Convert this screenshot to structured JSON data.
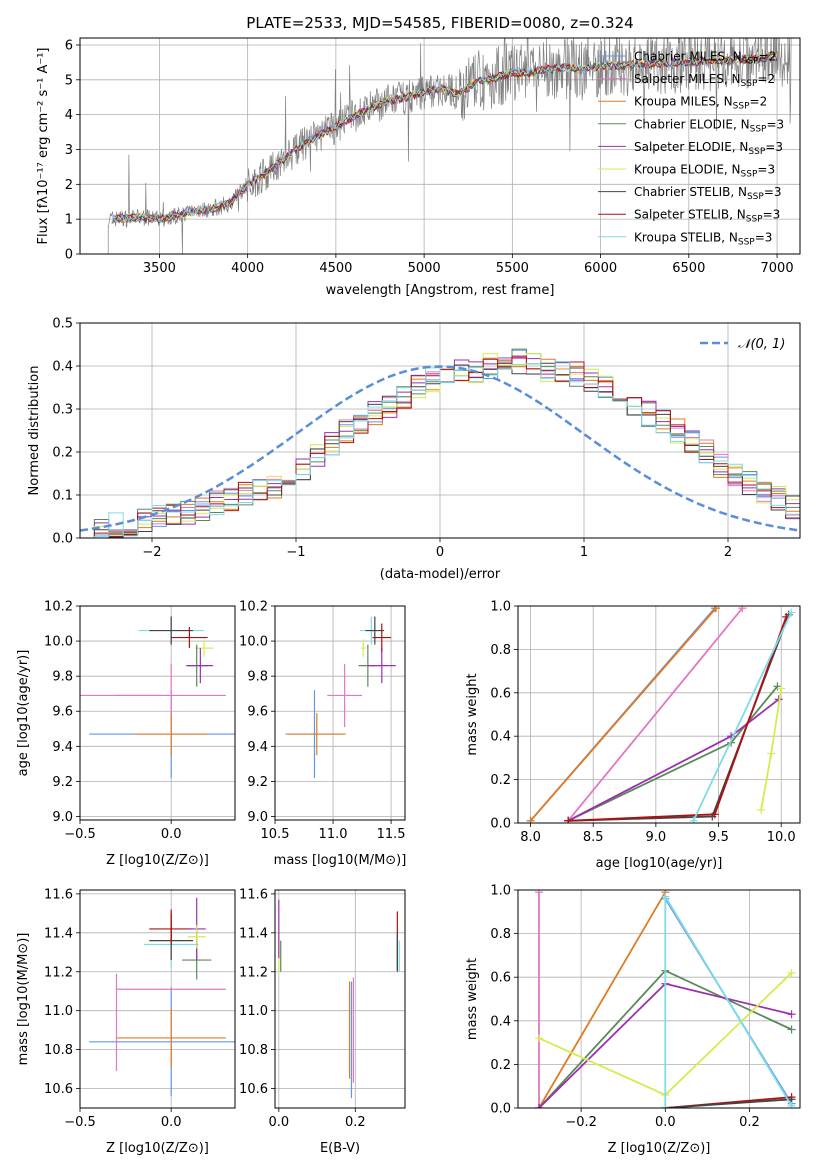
{
  "title": "PLATE=2533, MJD=54585, FIBERID=0080, z=0.324",
  "colors": {
    "chabrier_miles": "#6495ed",
    "salpeter_miles": "#e377c2",
    "kroupa_miles": "#e07b20",
    "chabrier_elodie": "#5a8a5a",
    "salpeter_elodie": "#9b30b0",
    "kroupa_elodie": "#d4ec50",
    "chabrier_stelib": "#444444",
    "salpeter_stelib": "#b01010",
    "kroupa_stelib": "#7fdbe8",
    "data": "#808080",
    "normal": "#5b8ed6",
    "grid": "#b0b0b0"
  },
  "legend_spectrum": [
    "Chabrier MILES, N",
    "Salpeter MILES, N",
    "Kroupa MILES, N",
    "Chabrier ELODIE, N",
    "Salpeter ELODIE, N",
    "Kroupa ELODIE, N",
    "Chabrier STELIB, N",
    "Salpeter STELIB, N",
    "Kroupa STELIB, N"
  ],
  "legend_nssp": [
    "2",
    "2",
    "2",
    "3",
    "3",
    "3",
    "3",
    "3",
    "3"
  ],
  "legend_sub": "SSP",
  "legend_eq": "=",
  "legend_normal": "𝒩(0, 1)",
  "chart_data": [
    {
      "id": "spectrum",
      "type": "line",
      "title": "PLATE=2533, MJD=54585, FIBERID=0080, z=0.324",
      "xlabel": "wavelength [Angstrom, rest frame]",
      "ylabel": "Flux [f_λ 10^-17 erg cm^-2 s^-1 A^-1]",
      "xlim": [
        3050,
        7130
      ],
      "ylim": [
        0,
        6.2
      ],
      "xticks": [
        3500,
        4000,
        4500,
        5000,
        5500,
        6000,
        6500,
        7000
      ],
      "yticks": [
        0,
        1,
        2,
        3,
        4,
        5,
        6
      ],
      "continuum": [
        [
          3210,
          1.0
        ],
        [
          3400,
          1.05
        ],
        [
          3500,
          1.0
        ],
        [
          3600,
          1.1
        ],
        [
          3700,
          1.25
        ],
        [
          3800,
          1.3
        ],
        [
          3900,
          1.45
        ],
        [
          4000,
          2.0
        ],
        [
          4100,
          2.3
        ],
        [
          4200,
          2.7
        ],
        [
          4300,
          3.1
        ],
        [
          4400,
          3.4
        ],
        [
          4500,
          3.65
        ],
        [
          4600,
          3.95
        ],
        [
          4700,
          4.2
        ],
        [
          4800,
          4.4
        ],
        [
          4900,
          4.5
        ],
        [
          5000,
          4.65
        ],
        [
          5100,
          4.75
        ],
        [
          5200,
          4.6
        ],
        [
          5300,
          4.95
        ],
        [
          5400,
          5.05
        ],
        [
          5500,
          5.2
        ],
        [
          5600,
          5.2
        ],
        [
          5700,
          5.3
        ],
        [
          5800,
          5.35
        ],
        [
          5900,
          5.3
        ],
        [
          6000,
          5.4
        ],
        [
          6100,
          5.4
        ],
        [
          6200,
          5.45
        ],
        [
          6300,
          5.45
        ],
        [
          6400,
          5.5
        ],
        [
          6500,
          5.5
        ],
        [
          6600,
          5.55
        ],
        [
          6700,
          5.55
        ],
        [
          6800,
          5.6
        ],
        [
          6900,
          5.6
        ],
        [
          7000,
          5.65
        ],
        [
          7080,
          5.7
        ]
      ]
    },
    {
      "id": "residuals",
      "type": "histogram",
      "xlabel": "(data-model)/error",
      "ylabel": "Normed distribution",
      "xlim": [
        -2.5,
        2.5
      ],
      "ylim": [
        0,
        0.5
      ],
      "xticks": [
        -2,
        -1,
        0,
        1,
        2
      ],
      "yticks": [
        0.0,
        0.1,
        0.2,
        0.3,
        0.4,
        0.5
      ],
      "bin_edges_start": -2.5,
      "bin_width": 0.1,
      "base_values": [
        0.02,
        0.02,
        0.03,
        0.03,
        0.04,
        0.05,
        0.05,
        0.06,
        0.07,
        0.08,
        0.09,
        0.1,
        0.11,
        0.12,
        0.14,
        0.16,
        0.19,
        0.22,
        0.25,
        0.27,
        0.29,
        0.31,
        0.33,
        0.35,
        0.37,
        0.38,
        0.39,
        0.39,
        0.4,
        0.4,
        0.41,
        0.4,
        0.39,
        0.39,
        0.38,
        0.37,
        0.35,
        0.33,
        0.31,
        0.29,
        0.27,
        0.25,
        0.22,
        0.2,
        0.17,
        0.15,
        0.13,
        0.11,
        0.09,
        0.07
      ]
    },
    {
      "id": "age_vs_Z",
      "type": "errorbar",
      "xlabel": "Z [log10(Z/Z⊙)]",
      "ylabel": "age [log10(age/yr)]",
      "xlim": [
        -0.5,
        0.35
      ],
      "ylim": [
        8.98,
        10.2
      ],
      "xticks": [
        -0.5,
        0.0,
        0.5
      ],
      "yticks": [
        9.0,
        9.2,
        9.4,
        9.6,
        9.8,
        10.0,
        10.2
      ],
      "points": [
        {
          "s": "chabrier_miles",
          "x": 0.0,
          "y": 9.47,
          "xe": 0.45,
          "ye": 0.25
        },
        {
          "s": "salpeter_miles",
          "x": -0.3,
          "y": 9.69,
          "xe": 0.25,
          "ye": 0.0
        },
        {
          "s": "salpeter_miles",
          "x": 0.0,
          "y": 9.69,
          "xe": 0.3,
          "ye": 0.18
        },
        {
          "s": "kroupa_miles",
          "x": 0.0,
          "y": 9.47,
          "xe": 0.2,
          "ye": 0.12
        },
        {
          "s": "kroupa_stelib",
          "x": 0.0,
          "y": 10.06,
          "xe": 0.18,
          "ye": 0.08
        },
        {
          "s": "chabrier_stelib",
          "x": 0.0,
          "y": 10.06,
          "xe": 0.12,
          "ye": 0.08
        },
        {
          "s": "salpeter_stelib",
          "x": 0.1,
          "y": 10.02,
          "xe": 0.1,
          "ye": 0.06
        },
        {
          "s": "kroupa_elodie",
          "x": 0.18,
          "y": 9.96,
          "xe": 0.05,
          "ye": 0.05
        },
        {
          "s": "chabrier_elodie",
          "x": 0.14,
          "y": 9.86,
          "xe": 0.06,
          "ye": 0.12
        },
        {
          "s": "salpeter_elodie",
          "x": 0.16,
          "y": 9.86,
          "xe": 0.07,
          "ye": 0.1
        }
      ]
    },
    {
      "id": "age_vs_mass",
      "type": "errorbar",
      "xlabel": "mass [log10(M/M⊙)]",
      "ylabel": "",
      "xlim": [
        10.5,
        11.62
      ],
      "ylim": [
        8.98,
        10.2
      ],
      "xticks": [
        10.5,
        11.0,
        11.5
      ],
      "yticks": [
        9.0,
        9.2,
        9.4,
        9.6,
        9.8,
        10.0,
        10.2
      ],
      "points": [
        {
          "s": "chabrier_miles",
          "x": 10.84,
          "y": 9.47,
          "xe": 0.25,
          "ye": 0.25
        },
        {
          "s": "kroupa_miles",
          "x": 10.86,
          "y": 9.47,
          "xe": 0.25,
          "ye": 0.12
        },
        {
          "s": "salpeter_miles",
          "x": 11.1,
          "y": 9.69,
          "xe": 0.15,
          "ye": 0.18
        },
        {
          "s": "chabrier_elodie",
          "x": 11.3,
          "y": 9.86,
          "xe": 0.08,
          "ye": 0.12
        },
        {
          "s": "salpeter_elodie",
          "x": 11.42,
          "y": 9.86,
          "xe": 0.12,
          "ye": 0.1
        },
        {
          "s": "kroupa_stelib",
          "x": 11.33,
          "y": 10.06,
          "xe": 0.1,
          "ye": 0.08
        },
        {
          "s": "chabrier_stelib",
          "x": 11.36,
          "y": 10.06,
          "xe": 0.08,
          "ye": 0.08
        },
        {
          "s": "salpeter_stelib",
          "x": 11.42,
          "y": 10.02,
          "xe": 0.08,
          "ye": 0.08
        },
        {
          "s": "kroupa_elodie",
          "x": 11.26,
          "y": 9.96,
          "xe": 0.02,
          "ye": 0.05
        }
      ]
    },
    {
      "id": "massweight_vs_age",
      "type": "line",
      "xlabel": "age [log10(age/yr)]",
      "ylabel": "mass weight",
      "xlim": [
        7.9,
        10.15
      ],
      "ylim": [
        0,
        1.0
      ],
      "xticks": [
        8.0,
        8.5,
        9.0,
        9.5,
        10.0
      ],
      "yticks": [
        0.0,
        0.2,
        0.4,
        0.6,
        0.8,
        1.0
      ],
      "series": [
        {
          "s": "chabrier_miles",
          "x": [
            8.0,
            9.47
          ],
          "y": [
            0.01,
            0.99
          ]
        },
        {
          "s": "kroupa_miles",
          "x": [
            8.0,
            9.48
          ],
          "y": [
            0.01,
            0.99
          ]
        },
        {
          "s": "salpeter_miles",
          "x": [
            8.3,
            9.69
          ],
          "y": [
            0.01,
            0.99
          ]
        },
        {
          "s": "chabrier_elodie",
          "x": [
            8.3,
            9.6,
            9.97
          ],
          "y": [
            0.01,
            0.37,
            0.63
          ]
        },
        {
          "s": "salpeter_elodie",
          "x": [
            8.3,
            9.6,
            9.98
          ],
          "y": [
            0.01,
            0.4,
            0.57
          ]
        },
        {
          "s": "kroupa_elodie",
          "x": [
            9.84,
            9.92,
            10.0
          ],
          "y": [
            0.06,
            0.32,
            0.62
          ]
        },
        {
          "s": "chabrier_stelib",
          "x": [
            8.3,
            9.45,
            10.06
          ],
          "y": [
            0.01,
            0.03,
            0.96
          ]
        },
        {
          "s": "salpeter_stelib",
          "x": [
            8.3,
            9.47,
            10.04
          ],
          "y": [
            0.01,
            0.04,
            0.95
          ]
        },
        {
          "s": "kroupa_stelib",
          "x": [
            9.3,
            10.08
          ],
          "y": [
            0.01,
            0.97
          ]
        }
      ]
    },
    {
      "id": "mass_vs_Z",
      "type": "errorbar",
      "xlabel": "Z [log10(Z/Z⊙)]",
      "ylabel": "mass [log10(M/M⊙)]",
      "xlim": [
        -0.5,
        0.35
      ],
      "ylim": [
        10.5,
        11.62
      ],
      "xticks": [
        -0.5,
        0.0,
        0.5
      ],
      "yticks": [
        10.6,
        10.8,
        11.0,
        11.2,
        11.4,
        11.6
      ],
      "points": [
        {
          "s": "chabrier_miles",
          "x": 0.0,
          "y": 10.84,
          "xe": 0.45,
          "ye": 0.28
        },
        {
          "s": "kroupa_miles",
          "x": 0.0,
          "y": 10.86,
          "xe": 0.3,
          "ye": 0.15
        },
        {
          "s": "salpeter_miles",
          "x": -0.3,
          "y": 10.94,
          "xe": 0.0,
          "ye": 0.25
        },
        {
          "s": "salpeter_miles",
          "x": 0.0,
          "y": 11.11,
          "xe": 0.3,
          "ye": 0.0
        },
        {
          "s": "kroupa_stelib",
          "x": 0.0,
          "y": 11.34,
          "xe": 0.15,
          "ye": 0.12
        },
        {
          "s": "chabrier_stelib",
          "x": 0.0,
          "y": 11.36,
          "xe": 0.12,
          "ye": 0.1
        },
        {
          "s": "salpeter_stelib",
          "x": 0.0,
          "y": 11.42,
          "xe": 0.12,
          "ye": 0.08
        },
        {
          "s": "salpeter_stelib",
          "x": 0.0,
          "y": 11.44,
          "xe": 0.0,
          "ye": 0.08
        },
        {
          "s": "chabrier_elodie",
          "x": 0.14,
          "y": 11.26,
          "xe": 0.08,
          "ye": 0.1
        },
        {
          "s": "salpeter_elodie",
          "x": 0.14,
          "y": 11.42,
          "xe": 0.05,
          "ye": 0.16
        },
        {
          "s": "kroupa_elodie",
          "x": 0.14,
          "y": 11.38,
          "xe": 0.05,
          "ye": 0.06
        }
      ]
    },
    {
      "id": "mass_vs_ebv",
      "type": "errorbar",
      "xlabel": "E(B-V)",
      "ylabel": "",
      "xlim": [
        -0.01,
        0.33
      ],
      "ylim": [
        10.5,
        11.62
      ],
      "xticks": [
        0.0,
        0.2
      ],
      "yticks": [
        10.6,
        10.8,
        11.0,
        11.2,
        11.4,
        11.6
      ],
      "points": [
        {
          "s": "kroupa_elodie",
          "x": 0.0,
          "y": 11.32,
          "xe": 0,
          "ye": 0.12
        },
        {
          "s": "salpeter_elodie",
          "x": 0.0,
          "y": 11.42,
          "xe": 0,
          "ye": 0.15
        },
        {
          "s": "chabrier_elodie",
          "x": 0.005,
          "y": 11.28,
          "xe": 0,
          "ye": 0.08
        },
        {
          "s": "chabrier_miles",
          "x": 0.19,
          "y": 10.85,
          "xe": 0,
          "ye": 0.3
        },
        {
          "s": "kroupa_miles",
          "x": 0.185,
          "y": 10.9,
          "xe": 0,
          "ye": 0.25
        },
        {
          "s": "salpeter_miles",
          "x": 0.195,
          "y": 10.9,
          "xe": 0,
          "ye": 0.27
        },
        {
          "s": "salpeter_stelib",
          "x": 0.31,
          "y": 11.36,
          "xe": 0,
          "ye": 0.15
        },
        {
          "s": "chabrier_stelib",
          "x": 0.31,
          "y": 11.3,
          "xe": 0,
          "ye": 0.1
        },
        {
          "s": "kroupa_stelib",
          "x": 0.315,
          "y": 11.28,
          "xe": 0,
          "ye": 0.08
        }
      ]
    },
    {
      "id": "massweight_vs_Z",
      "type": "line",
      "xlabel": "Z [log10(Z/Z⊙)]",
      "ylabel": "mass weight",
      "xlim": [
        -0.35,
        0.32
      ],
      "ylim": [
        0,
        1.0
      ],
      "xticks": [
        -0.2,
        0.0,
        0.2
      ],
      "yticks": [
        0.0,
        0.2,
        0.4,
        0.6,
        0.8,
        1.0
      ],
      "series": [
        {
          "s": "salpeter_miles",
          "x": [
            -0.3,
            -0.3
          ],
          "y": [
            0.0,
            0.99
          ]
        },
        {
          "s": "kroupa_miles",
          "x": [
            -0.3,
            0.0
          ],
          "y": [
            0.0,
            0.99
          ]
        },
        {
          "s": "chabrier_miles",
          "x": [
            0.0,
            0.3
          ],
          "y": [
            0.96,
            0.02
          ]
        },
        {
          "s": "chabrier_elodie",
          "x": [
            -0.3,
            0.0,
            0.3
          ],
          "y": [
            0.0,
            0.63,
            0.36
          ]
        },
        {
          "s": "salpeter_elodie",
          "x": [
            -0.3,
            0.0,
            0.3
          ],
          "y": [
            0.0,
            0.57,
            0.43
          ]
        },
        {
          "s": "kroupa_elodie",
          "x": [
            -0.3,
            0.0,
            0.3
          ],
          "y": [
            0.32,
            0.06,
            0.62
          ]
        },
        {
          "s": "salpeter_stelib",
          "x": [
            0.0,
            0.3
          ],
          "y": [
            0.0,
            0.05
          ]
        },
        {
          "s": "chabrier_stelib",
          "x": [
            0.0,
            0.3
          ],
          "y": [
            0.0,
            0.04
          ]
        },
        {
          "s": "kroupa_stelib",
          "x": [
            0.0,
            0.0,
            0.3
          ],
          "y": [
            0.0,
            0.97,
            0.01
          ]
        }
      ]
    }
  ]
}
